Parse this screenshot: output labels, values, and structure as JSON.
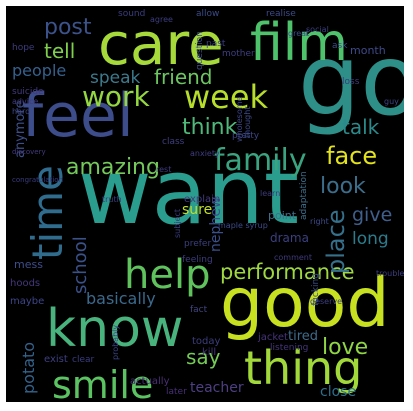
{
  "words": [
    {
      "text": "want",
      "color": "#2a9d8f"
    },
    {
      "text": "go",
      "color": "#2d8f87"
    },
    {
      "text": "care",
      "color": "#a6da3b"
    },
    {
      "text": "film",
      "color": "#4ec36b"
    },
    {
      "text": "feel",
      "color": "#3d4c8a"
    },
    {
      "text": "good",
      "color": "#c7e020"
    },
    {
      "text": "know",
      "color": "#49b37d"
    },
    {
      "text": "thing",
      "color": "#a2d93a"
    },
    {
      "text": "help",
      "color": "#5fc25d"
    },
    {
      "text": "smile",
      "color": "#5bc362"
    },
    {
      "text": "time",
      "color": "#2f6c8e"
    },
    {
      "text": "work",
      "color": "#94d741"
    },
    {
      "text": "week",
      "color": "#b7de2b"
    },
    {
      "text": "family",
      "color": "#3aa37f"
    },
    {
      "text": "amazing",
      "color": "#74c95a"
    },
    {
      "text": "performance",
      "color": "#9ed93f"
    },
    {
      "text": "think",
      "color": "#4fb97a"
    },
    {
      "text": "post",
      "color": "#3b528b"
    },
    {
      "text": "tell",
      "color": "#7ed04b"
    },
    {
      "text": "friend",
      "color": "#6cc760"
    },
    {
      "text": "people",
      "color": "#35618d"
    },
    {
      "text": "speak",
      "color": "#3c7a8d"
    },
    {
      "text": "talk",
      "color": "#2b8a8b"
    },
    {
      "text": "face",
      "color": "#e3e31b"
    },
    {
      "text": "look",
      "color": "#3b6e8c"
    },
    {
      "text": "give",
      "color": "#3f5f8c"
    },
    {
      "text": "place",
      "color": "#35718c"
    },
    {
      "text": "long",
      "color": "#2b7d8d"
    },
    {
      "text": "school",
      "color": "#3a5189"
    },
    {
      "text": "love",
      "color": "#8fd544"
    },
    {
      "text": "say",
      "color": "#74cc55"
    },
    {
      "text": "sure",
      "color": "#c2df23"
    },
    {
      "text": "basically",
      "color": "#3b6a8d"
    },
    {
      "text": "potato",
      "color": "#33638d"
    },
    {
      "text": "close",
      "color": "#2e6f8e"
    },
    {
      "text": "tired",
      "color": "#3e6b8c"
    },
    {
      "text": "teacher",
      "color": "#4e3f83"
    },
    {
      "text": "nephew",
      "color": "#3b4f8a"
    },
    {
      "text": "month",
      "color": "#3e4a89"
    },
    {
      "text": "anymore",
      "color": "#3c4f8a"
    },
    {
      "text": "hoods",
      "color": "#45377a"
    },
    {
      "text": "mess",
      "color": "#3d4e8a"
    },
    {
      "text": "drama",
      "color": "#3b3f7e"
    },
    {
      "text": "point",
      "color": "#3f6f8c"
    },
    {
      "text": "adaptation",
      "color": "#3d6f8c"
    },
    {
      "text": "explain",
      "color": "#44397d"
    },
    {
      "text": "wholesome",
      "color": "#3f4787"
    },
    {
      "text": "maybe",
      "color": "#3e4589"
    },
    {
      "text": "fact",
      "color": "#40457f"
    },
    {
      "text": "today",
      "color": "#3b3d7d"
    },
    {
      "text": "jacket",
      "color": "#46337a"
    },
    {
      "text": "fucking",
      "color": "#3c4f8a"
    },
    {
      "text": "exist",
      "color": "#3d3f80"
    },
    {
      "text": "clear",
      "color": "#3a3c80"
    },
    {
      "text": "kill",
      "color": "#45357b"
    },
    {
      "text": "actually",
      "color": "#4a2f76"
    },
    {
      "text": "later",
      "color": "#472f76"
    },
    {
      "text": "listening",
      "color": "#45347a"
    },
    {
      "text": "question",
      "color": "#3d4e8a"
    },
    {
      "text": "allow",
      "color": "#3a4c89"
    },
    {
      "text": "realise",
      "color": "#3c4a88"
    },
    {
      "text": "sound",
      "color": "#3a3c7e"
    },
    {
      "text": "past",
      "color": "#3b3e80"
    },
    {
      "text": "mother",
      "color": "#3d3e80"
    },
    {
      "text": "ask",
      "color": "#3b4d89"
    },
    {
      "text": "hope",
      "color": "#3e3b7d"
    },
    {
      "text": "loss",
      "color": "#3e3a7c"
    },
    {
      "text": "class",
      "color": "#3d3e7f"
    },
    {
      "text": "pretty",
      "color": "#3b4584"
    },
    {
      "text": "anxiety",
      "color": "#3f3d80"
    },
    {
      "text": "subject",
      "color": "#3a3c7e"
    },
    {
      "text": "thought",
      "color": "#3c4a88"
    },
    {
      "text": "suicide",
      "color": "#43387c"
    },
    {
      "text": "advice",
      "color": "#3f3b7e"
    },
    {
      "text": "hard",
      "color": "#3f4787"
    },
    {
      "text": "feeling",
      "color": "#3d3b7d"
    },
    {
      "text": "right",
      "color": "#3c4a88"
    },
    {
      "text": "prefer",
      "color": "#3b3f7e"
    },
    {
      "text": "discovery",
      "color": "#44397d"
    },
    {
      "text": "congratulation",
      "color": "#3a3c7e"
    },
    {
      "text": "probably",
      "color": "#3b4584"
    },
    {
      "text": "deserve",
      "color": "#3d3f80"
    },
    {
      "text": "maple syrup",
      "color": "#3c4a88"
    },
    {
      "text": "trouble",
      "color": "#3b3e80"
    },
    {
      "text": "comment",
      "color": "#40397c"
    },
    {
      "text": "social",
      "color": "#3d3f80"
    },
    {
      "text": "rest",
      "color": "#3e3b7d"
    },
    {
      "text": "guy",
      "color": "#3b4584"
    },
    {
      "text": "agree",
      "color": "#3c3d7e"
    },
    {
      "text": "great",
      "color": "#3b4d89"
    },
    {
      "text": "truth",
      "color": "#3c3c7d"
    },
    {
      "text": "learn",
      "color": "#3e3a7c"
    }
  ]
}
